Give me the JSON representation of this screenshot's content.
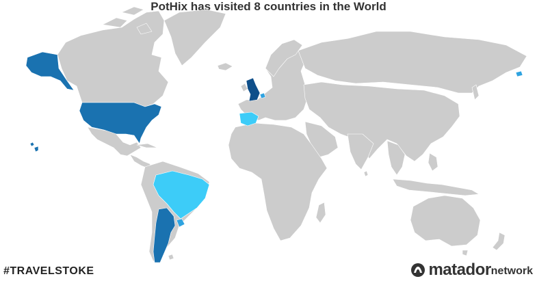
{
  "title": "PotHix has visited 8 countries in the World",
  "hashtag": "#TRAVELSTOKE",
  "brand": {
    "main": "matador",
    "suffix": "network",
    "icon": "matador-logo-icon"
  },
  "colors": {
    "unvisited": "#cccccc",
    "border": "#ffffff",
    "visited_dark": "#1a72b0",
    "visited_navy": "#0f4f8a",
    "visited_light": "#3dccf8",
    "visited_mid": "#2fa3e0"
  },
  "visited_countries": [
    {
      "name": "United States",
      "shade": "visited_dark"
    },
    {
      "name": "Argentina",
      "shade": "visited_dark"
    },
    {
      "name": "United Kingdom",
      "shade": "visited_navy"
    },
    {
      "name": "Brazil",
      "shade": "visited_light"
    },
    {
      "name": "Spain",
      "shade": "visited_light"
    },
    {
      "name": "Netherlands",
      "shade": "visited_mid"
    },
    {
      "name": "Uruguay",
      "shade": "visited_mid"
    },
    {
      "name": "Japan",
      "shade": "visited_mid"
    }
  ]
}
